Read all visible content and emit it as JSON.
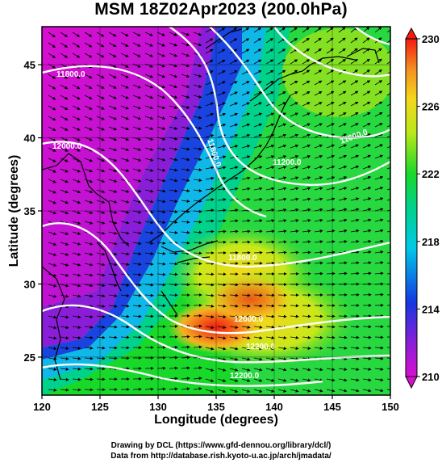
{
  "title": "MSM 18Z02Apr2023 (200.0hPa)",
  "xaxis": {
    "label": "Longitude (degrees)",
    "ticks": [
      "120",
      "125",
      "130",
      "135",
      "140",
      "145",
      "150"
    ],
    "range": [
      120,
      150
    ]
  },
  "yaxis": {
    "label": "Latitude  (degrees)",
    "ticks": [
      "25",
      "30",
      "35",
      "40",
      "45"
    ],
    "range": [
      22.4,
      47.6
    ]
  },
  "colorbar": {
    "ticks": [
      "210",
      "214",
      "218",
      "222",
      "226",
      "230"
    ],
    "range": [
      210,
      230
    ],
    "colors": [
      "#d60fd0",
      "#8a1ed8",
      "#1438e0",
      "#00c8e8",
      "#00d28c",
      "#18d82a",
      "#b8e81a",
      "#f4d81a",
      "#f49020",
      "#f41a10"
    ]
  },
  "contours": [
    {
      "label": "11800.0"
    },
    {
      "label": "12000.0"
    },
    {
      "label": "11800.0"
    },
    {
      "label": "11200.0"
    },
    {
      "label": "11600.0"
    },
    {
      "label": "11800.0"
    },
    {
      "label": "12000.0"
    },
    {
      "label": "12200.0"
    },
    {
      "label": "12200.0"
    }
  ],
  "credits": {
    "line1": "Drawing by DCL (https://www.gfd-dennou.org/library/dcl/)",
    "line2": "Data from http://database.rish.kyoto-u.ac.jp/arch/jmadata/"
  }
}
